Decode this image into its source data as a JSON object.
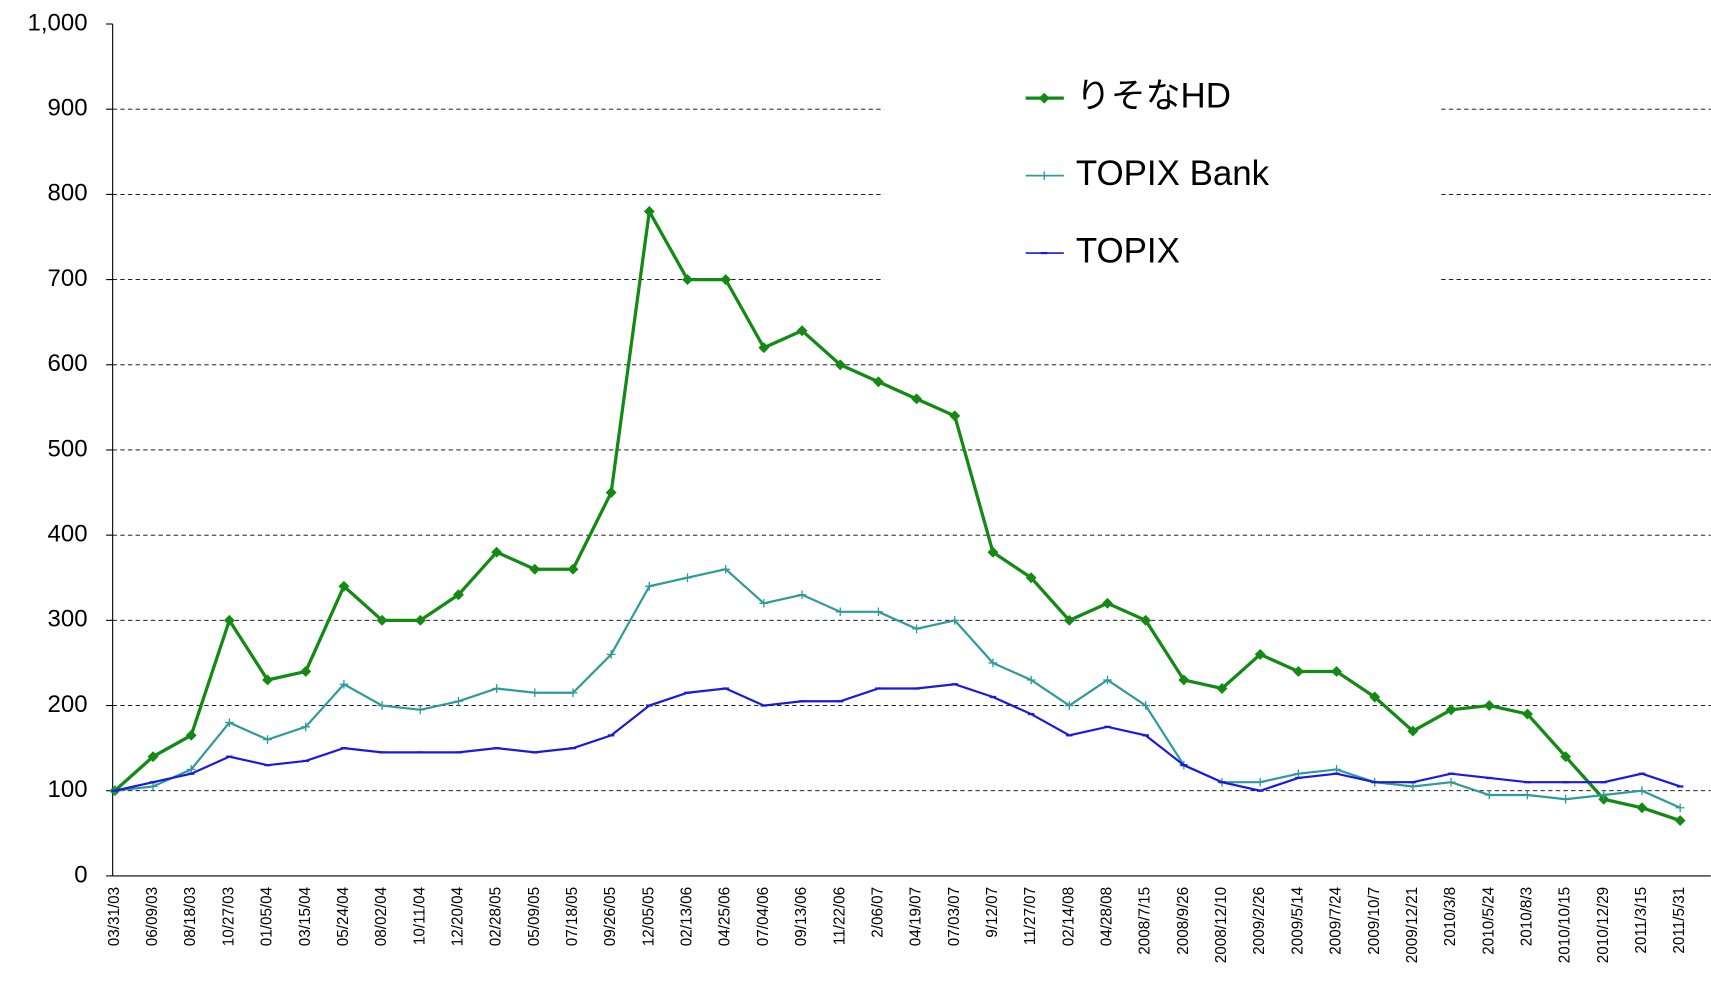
{
  "chart_data": {
    "type": "line",
    "categories": [
      "03/31/03",
      "06/09/03",
      "08/18/03",
      "10/27/03",
      "01/05/04",
      "03/15/04",
      "05/24/04",
      "08/02/04",
      "10/11/04",
      "12/20/04",
      "02/28/05",
      "05/09/05",
      "07/18/05",
      "09/26/05",
      "12/05/05",
      "02/13/06",
      "04/25/06",
      "07/04/06",
      "09/13/06",
      "11/22/06",
      "2/06/07",
      "04/19/07",
      "07/03/07",
      "9/12/07",
      "11/27/07",
      "02/14/08",
      "04/28/08",
      "2008/7/15",
      "2008/9/26",
      "2008/12/10",
      "2009/2/26",
      "2009/5/14",
      "2009/7/24",
      "2009/10/7",
      "2009/12/21",
      "2010/3/8",
      "2010/5/24",
      "2010/8/3",
      "2010/10/15",
      "2010/12/29",
      "2011/3/15",
      "2011/5/31"
    ],
    "series": [
      {
        "name": "りそなHD",
        "color": "#138a13",
        "values": [
          100,
          140,
          165,
          300,
          230,
          240,
          340,
          300,
          300,
          330,
          380,
          360,
          360,
          450,
          780,
          700,
          700,
          620,
          640,
          600,
          580,
          560,
          540,
          380,
          350,
          300,
          320,
          300,
          230,
          220,
          260,
          240,
          240,
          210,
          170,
          195,
          200,
          190,
          140,
          90,
          80,
          65
        ]
      },
      {
        "name": "TOPIX Bank",
        "color": "#2e9a9a",
        "values": [
          100,
          105,
          125,
          180,
          160,
          175,
          225,
          200,
          195,
          205,
          220,
          215,
          215,
          260,
          340,
          350,
          360,
          320,
          330,
          310,
          310,
          290,
          300,
          250,
          230,
          200,
          230,
          200,
          130,
          110,
          110,
          120,
          125,
          110,
          105,
          110,
          95,
          95,
          90,
          95,
          100,
          80
        ]
      },
      {
        "name": "TOPIX",
        "color": "#1a1adc",
        "values": [
          100,
          110,
          120,
          140,
          130,
          135,
          150,
          145,
          145,
          145,
          150,
          145,
          150,
          165,
          200,
          215,
          220,
          200,
          205,
          205,
          220,
          220,
          225,
          210,
          190,
          165,
          175,
          165,
          130,
          110,
          100,
          115,
          120,
          110,
          110,
          120,
          115,
          110,
          110,
          110,
          120,
          105
        ]
      }
    ],
    "ylim": [
      0,
      1000
    ],
    "yticks": [
      0,
      100,
      200,
      300,
      400,
      500,
      600,
      700,
      800,
      900,
      {
        "value": 1000,
        "label": "1,000"
      }
    ],
    "grid": true
  }
}
